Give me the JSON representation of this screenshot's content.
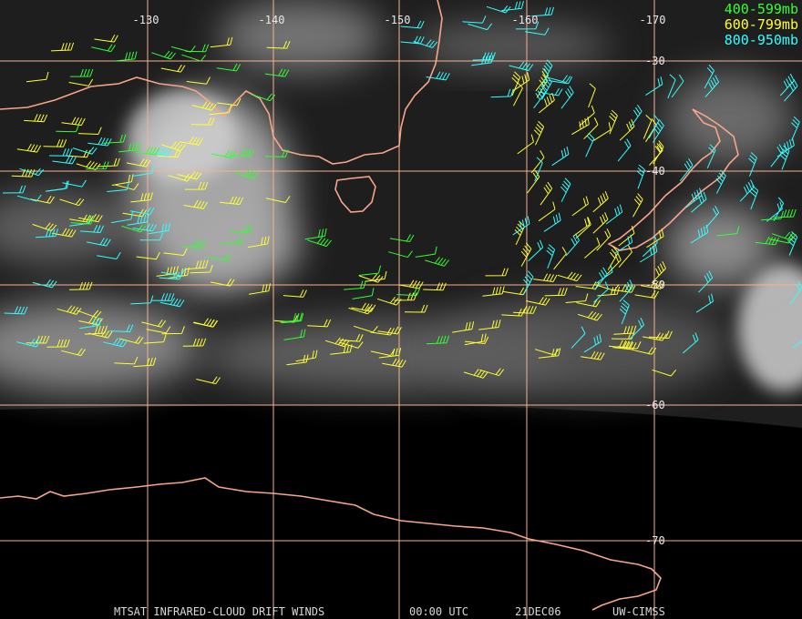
{
  "longitude_labels": [
    "-130",
    "-140",
    "-150",
    "-160",
    "-170"
  ],
  "latitude_labels": [
    "-30",
    "-40",
    "-50",
    "-60",
    "-70"
  ],
  "legend": [
    "400-599mb",
    "600-799mb",
    "800-950mb"
  ],
  "footer": [
    "MTSAT INFRARED-CLOUD DRIFT WINDS",
    "00:00 UTC",
    "21DEC06",
    "UW-CIMSS"
  ]
}
